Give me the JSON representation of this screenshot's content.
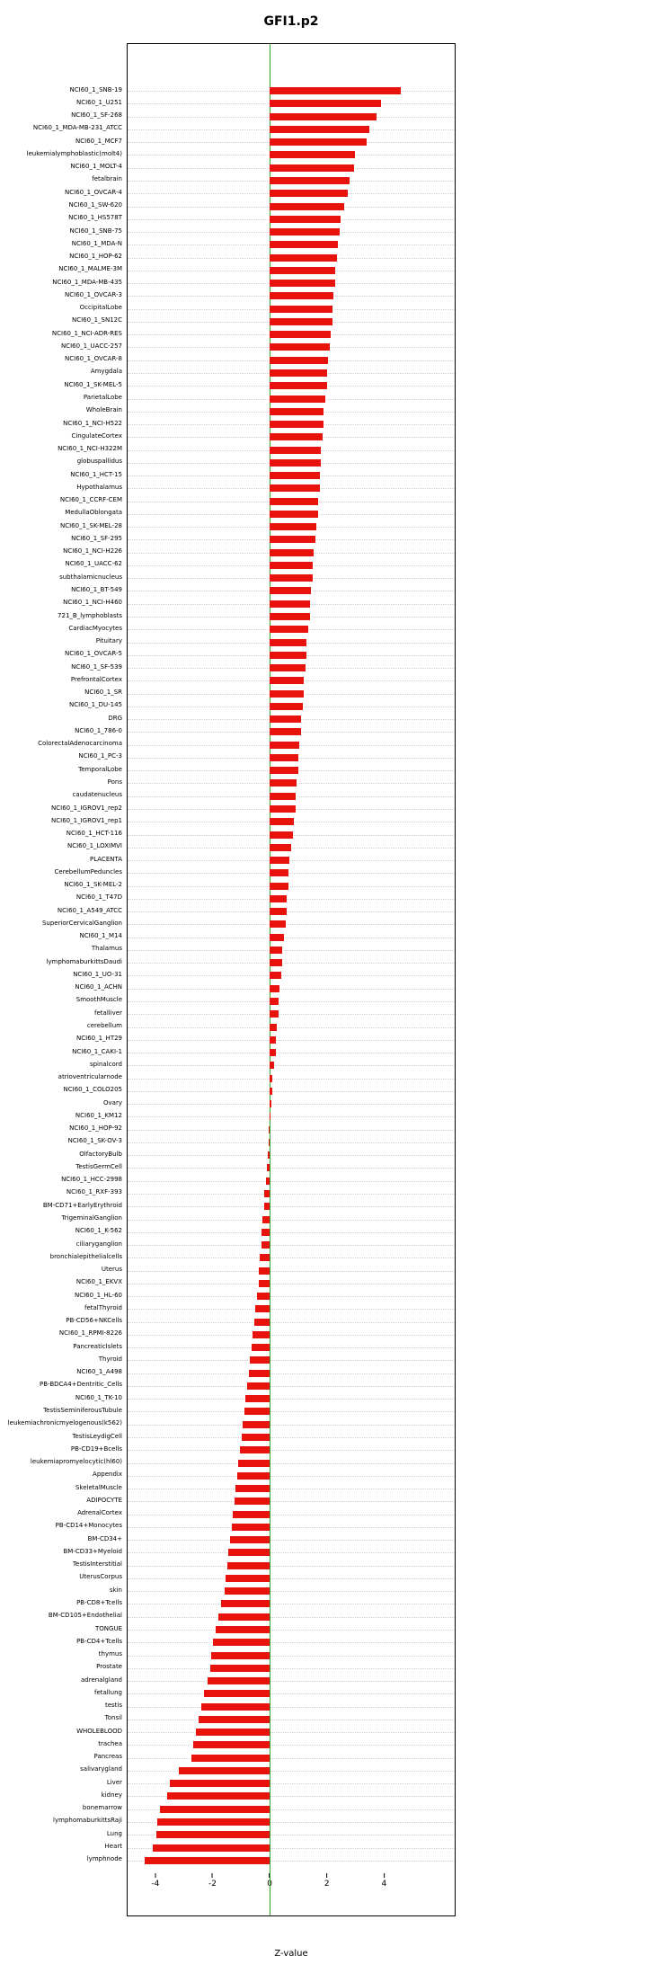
{
  "chart_data": {
    "type": "bar",
    "orientation": "horizontal",
    "title": "GFI1.p2",
    "xlabel": "Z-value",
    "xlim": [
      -5,
      6.5
    ],
    "xticks": [
      -4,
      -2,
      0,
      2,
      4
    ],
    "grid": "dotted-horizontal",
    "legend": "none",
    "bar_color": "#e8130c",
    "zero_line_color": "#2fa82f",
    "grid_color": "#cfcfcf",
    "categories": [
      "NCI60_1_SNB-19",
      "NCI60_1_U251",
      "NCI60_1_SF-268",
      "NCI60_1_MDA-MB-231_ATCC",
      "NCI60_1_MCF7",
      "leukemialymphoblastic(molt4)",
      "NCI60_1_MOLT-4",
      "fetalbrain",
      "NCI60_1_OVCAR-4",
      "NCI60_1_SW-620",
      "NCI60_1_HS578T",
      "NCI60_1_SNB-75",
      "NCI60_1_MDA-N",
      "NCI60_1_HOP-62",
      "NCI60_1_MALME-3M",
      "NCI60_1_MDA-MB-435",
      "NCI60_1_OVCAR-3",
      "OccipitalLobe",
      "NCI60_1_SN12C",
      "NCI60_1_NCI-ADR-RES",
      "NCI60_1_UACC-257",
      "NCI60_1_OVCAR-8",
      "Amygdala",
      "NCI60_1_SK-MEL-5",
      "ParietalLobe",
      "WholeBrain",
      "NCI60_1_NCI-H522",
      "CingulateCortex",
      "NCI60_1_NCI-H322M",
      "globuspallidus",
      "NCI60_1_HCT-15",
      "Hypothalamus",
      "NCI60_1_CCRF-CEM",
      "MedullaOblongata",
      "NCI60_1_SK-MEL-28",
      "NCI60_1_SF-295",
      "NCI60_1_NCI-H226",
      "NCI60_1_UACC-62",
      "subthalamicnucleus",
      "NCI60_1_BT-549",
      "NCI60_1_NCI-H460",
      "721_B_lymphoblasts",
      "CardiacMyocytes",
      "Pituitary",
      "NCI60_1_OVCAR-5",
      "NCI60_1_SF-539",
      "PrefrontalCortex",
      "NCI60_1_SR",
      "NCI60_1_DU-145",
      "DRG",
      "NCI60_1_786-0",
      "ColorectalAdenocarcinoma",
      "NCI60_1_PC-3",
      "TemporalLobe",
      "Pons",
      "caudatenucleus",
      "NCI60_1_IGROV1_rep2",
      "NCI60_1_IGROV1_rep1",
      "NCI60_1_HCT-116",
      "NCI60_1_LOXIMVI",
      "PLACENTA",
      "CerebellumPeduncles",
      "NCI60_1_SK-MEL-2",
      "NCI60_1_T47D",
      "NCI60_1_A549_ATCC",
      "SuperiorCervicalGanglion",
      "NCI60_1_M14",
      "Thalamus",
      "lymphomaburkittsDaudi",
      "NCI60_1_UO-31",
      "NCI60_1_ACHN",
      "SmoothMuscle",
      "fetalliver",
      "cerebellum",
      "NCI60_1_HT29",
      "NCI60_1_CAKI-1",
      "spinalcord",
      "atrioventricularnode",
      "NCI60_1_COLO205",
      "Ovary",
      "NCI60_1_KM12",
      "NCI60_1_HOP-92",
      "NCI60_1_SK-OV-3",
      "OlfactoryBulb",
      "TestisGermCell",
      "NCI60_1_HCC-2998",
      "NCI60_1_RXF-393",
      "BM-CD71+EarlyErythroid",
      "TrigeminalGanglion",
      "NCI60_1_K-562",
      "ciliaryganglion",
      "bronchialepithelialcells",
      "Uterus",
      "NCI60_1_EKVX",
      "NCI60_1_HL-60",
      "fetalThyroid",
      "PB-CD56+NKCells",
      "NCI60_1_RPMI-8226",
      "PancreaticIslets",
      "Thyroid",
      "NCI60_1_A498",
      "PB-BDCA4+Dentritic_Cells",
      "NCI60_1_TK-10",
      "TestisSeminiferousTubule",
      "leukemiachronicmyelogenous(k562)",
      "TestisLeydigCell",
      "PB-CD19+Bcells",
      "leukemiapromyelocytic(hl60)",
      "Appendix",
      "SkeletalMuscle",
      "ADIPOCYTE",
      "AdrenalCortex",
      "PB-CD14+Monocytes",
      "BM-CD34+",
      "BM-CD33+Myeloid",
      "TestisInterstitial",
      "UterusCorpus",
      "skin",
      "PB-CD8+Tcells",
      "BM-CD105+Endothelial",
      "TONGUE",
      "PB-CD4+Tcells",
      "thymus",
      "Prostate",
      "adrenalgland",
      "fetallung",
      "testis",
      "Tonsil",
      "WHOLEBLOOD",
      "trachea",
      "Pancreas",
      "salivarygland",
      "Liver",
      "kidney",
      "bonemarrow",
      "lymphomaburkittsRaji",
      "Lung",
      "Heart",
      "lymphnode"
    ],
    "values": [
      4.6,
      3.9,
      3.75,
      3.5,
      3.4,
      3.0,
      2.95,
      2.8,
      2.75,
      2.6,
      2.5,
      2.45,
      2.4,
      2.35,
      2.3,
      2.3,
      2.25,
      2.2,
      2.2,
      2.15,
      2.1,
      2.05,
      2.0,
      2.0,
      1.95,
      1.9,
      1.9,
      1.85,
      1.8,
      1.8,
      1.75,
      1.75,
      1.7,
      1.7,
      1.65,
      1.6,
      1.55,
      1.5,
      1.5,
      1.45,
      1.4,
      1.4,
      1.35,
      1.3,
      1.3,
      1.25,
      1.2,
      1.2,
      1.15,
      1.1,
      1.1,
      1.05,
      1.0,
      1.0,
      0.95,
      0.9,
      0.9,
      0.85,
      0.8,
      0.75,
      0.7,
      0.65,
      0.65,
      0.6,
      0.6,
      0.55,
      0.5,
      0.45,
      0.45,
      0.4,
      0.35,
      0.3,
      0.3,
      0.25,
      0.2,
      0.2,
      0.15,
      0.1,
      0.1,
      0.05,
      0.03,
      -0.03,
      -0.05,
      -0.08,
      -0.1,
      -0.15,
      -0.2,
      -0.2,
      -0.25,
      -0.3,
      -0.3,
      -0.35,
      -0.4,
      -0.4,
      -0.45,
      -0.5,
      -0.55,
      -0.6,
      -0.65,
      -0.7,
      -0.75,
      -0.8,
      -0.85,
      -0.9,
      -0.95,
      -1.0,
      -1.05,
      -1.1,
      -1.15,
      -1.2,
      -1.25,
      -1.3,
      -1.35,
      -1.4,
      -1.45,
      -1.5,
      -1.55,
      -1.6,
      -1.7,
      -1.8,
      -1.9,
      -2.0,
      -2.05,
      -2.1,
      -2.2,
      -2.3,
      -2.4,
      -2.5,
      -2.6,
      -2.7,
      -2.75,
      -3.2,
      -3.5,
      -3.6,
      -3.85,
      -3.95,
      -4.0,
      -4.1,
      -4.4
    ]
  }
}
